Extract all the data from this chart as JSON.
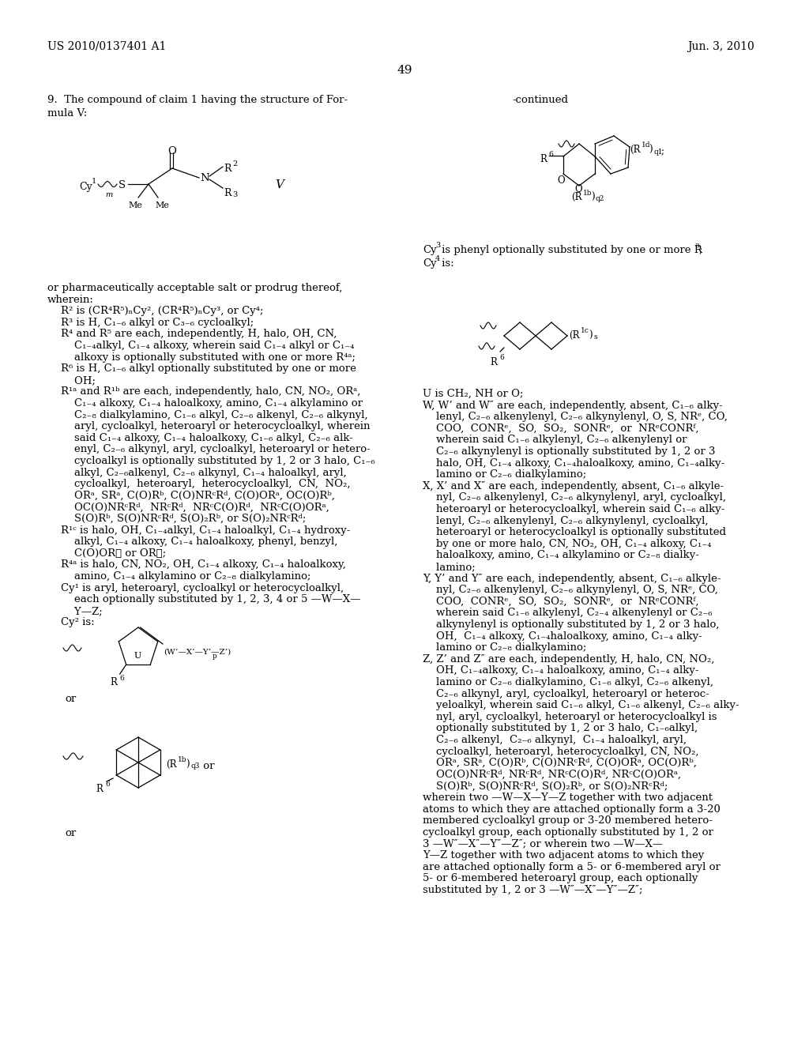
{
  "page_number": "49",
  "header_left": "US 2010/0137401 A1",
  "header_right": "Jun. 3, 2010",
  "bg_color": "#ffffff",
  "text_color": "#000000"
}
